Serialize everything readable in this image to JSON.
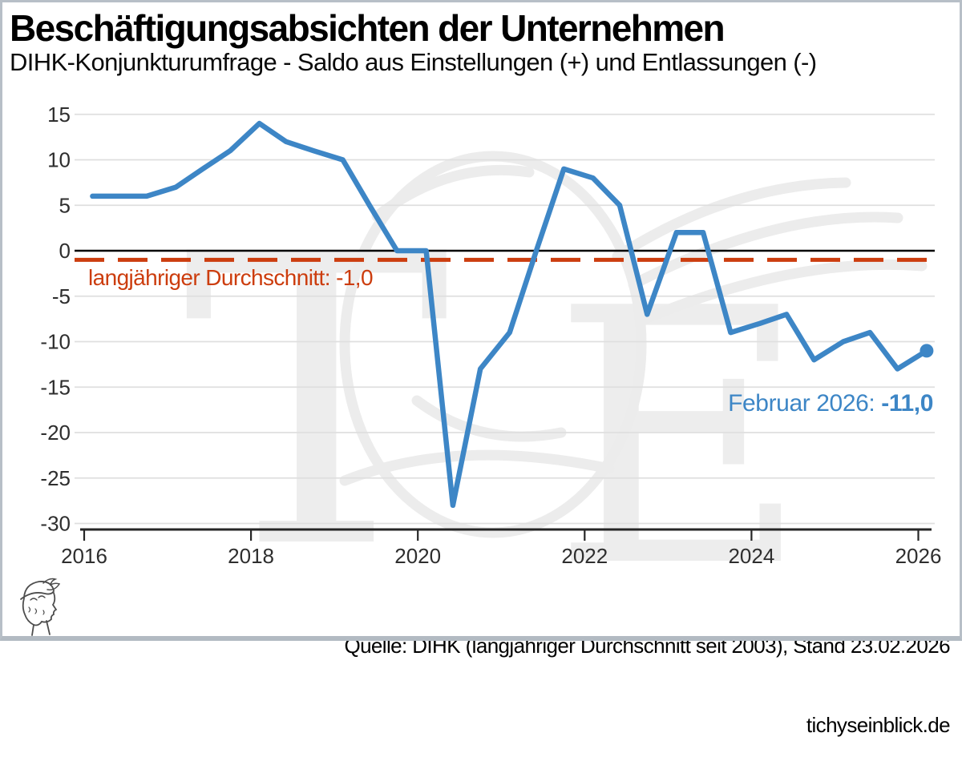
{
  "title": "Beschäftigungsabsichten der Unternehmen",
  "subtitle": "DIHK-Konjunkturumfrage - Saldo aus Einstellungen (+) und Entlassungen (-)",
  "average_line": {
    "label": "langjähriger Durchschnitt: -1,0",
    "value": -1.0
  },
  "annotation": {
    "label": "Februar 2026: ",
    "value": "-11,0"
  },
  "footer": {
    "source_line": "Quelle: DIHK (langjähriger Durchschnitt seit 2003), Stand 23.02.2026",
    "site": "tichyseinblick.de"
  },
  "watermark": {
    "letter_left": "T",
    "letter_right": "E",
    "logo_motif": "mercury-head"
  },
  "colors": {
    "line": "#3d86c6",
    "average": "#cc3d0e",
    "grid": "#dfdfdf",
    "zero_line": "#000000",
    "axis": "#262626",
    "tick_text": "#2e2e2e",
    "watermark": "#ececec"
  },
  "chart_data": {
    "type": "line",
    "series_name": "Saldo aus Einstellungen (+) und Entlassungen (-)",
    "x": [
      2016.1,
      2016.42,
      2016.75,
      2017.1,
      2017.42,
      2017.75,
      2018.1,
      2018.42,
      2018.75,
      2019.1,
      2019.42,
      2019.75,
      2020.1,
      2020.42,
      2020.75,
      2021.1,
      2021.42,
      2021.75,
      2022.1,
      2022.42,
      2022.75,
      2023.1,
      2023.42,
      2023.75,
      2024.1,
      2024.42,
      2024.75,
      2025.1,
      2025.42,
      2025.75,
      2026.1
    ],
    "values": [
      6,
      6,
      6,
      7,
      9,
      11,
      14,
      12,
      11,
      10,
      5,
      0,
      0,
      -28,
      -13,
      -9,
      0,
      9,
      8,
      5,
      -7,
      2,
      2,
      -9,
      -8,
      -7,
      -12,
      -10,
      -9,
      -13,
      -11
    ],
    "last_point": {
      "x": 2026.1,
      "value": -11.0
    },
    "x_ticks": [
      2016,
      2018,
      2020,
      2022,
      2024,
      2026
    ],
    "y_ticks": [
      15,
      10,
      5,
      0,
      -5,
      -10,
      -15,
      -20,
      -25,
      -30
    ],
    "ylim": [
      -30,
      15
    ],
    "xlim": [
      2015.9,
      2026.3
    ],
    "grid": true,
    "zero_line": true,
    "average_value": -1.0
  }
}
